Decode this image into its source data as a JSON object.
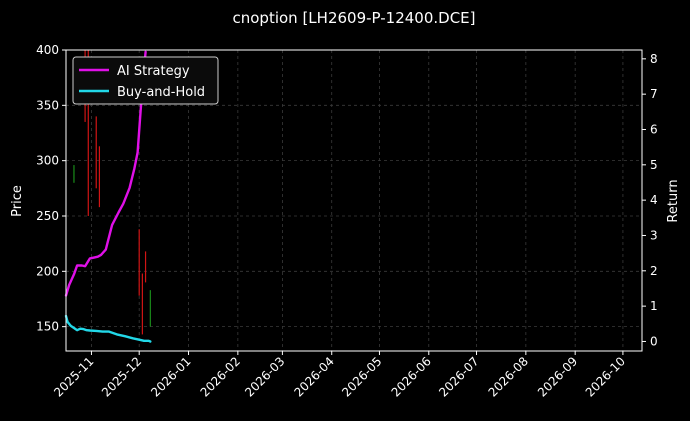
{
  "chart_data": {
    "type": "line",
    "title": "cnoption [LH2609-P-12400.DCE]",
    "ylabel": "Price",
    "y2label": "Return",
    "ylim": [
      128,
      400
    ],
    "y2lim": [
      -0.27,
      8.25
    ],
    "xlim": [
      "2025-10-16",
      "2026-10-13"
    ],
    "y_ticks": [
      "150",
      "200",
      "250",
      "300",
      "350",
      "400"
    ],
    "y2_ticks": [
      "0",
      "1",
      "2",
      "3",
      "4",
      "5",
      "6",
      "7",
      "8"
    ],
    "x_ticks": [
      {
        "date": "2025-11-01",
        "label": "2025-11"
      },
      {
        "date": "2025-12-01",
        "label": "2025-12"
      },
      {
        "date": "2026-01-01",
        "label": "2026-01"
      },
      {
        "date": "2026-02-01",
        "label": "2026-02"
      },
      {
        "date": "2026-03-01",
        "label": "2026-03"
      },
      {
        "date": "2026-04-01",
        "label": "2026-04"
      },
      {
        "date": "2026-05-01",
        "label": "2026-05"
      },
      {
        "date": "2026-06-01",
        "label": "2026-06"
      },
      {
        "date": "2026-07-01",
        "label": "2026-07"
      },
      {
        "date": "2026-08-01",
        "label": "2026-08"
      },
      {
        "date": "2026-09-01",
        "label": "2026-09"
      },
      {
        "date": "2026-10-01",
        "label": "2026-10"
      }
    ],
    "grid": true,
    "legend_position": "top-left",
    "colors": {
      "background": "#000000",
      "grid": "#3a3a3a",
      "axis": "#ffffff",
      "up_candle": "#1a8c1a",
      "down_candle": "#d11515"
    },
    "candles": [
      {
        "date": "2025-10-21",
        "high": 296,
        "low": 280,
        "dir": "up"
      },
      {
        "date": "2025-10-28",
        "high": 400,
        "low": 335,
        "dir": "down"
      },
      {
        "date": "2025-10-30",
        "high": 400,
        "low": 250,
        "dir": "down"
      },
      {
        "date": "2025-11-04",
        "high": 340,
        "low": 275,
        "dir": "down"
      },
      {
        "date": "2025-11-06",
        "high": 313,
        "low": 258,
        "dir": "down"
      },
      {
        "date": "2025-12-01",
        "high": 238,
        "low": 178,
        "dir": "down"
      },
      {
        "date": "2025-12-03",
        "high": 198,
        "low": 143,
        "dir": "down"
      },
      {
        "date": "2025-12-05",
        "high": 218,
        "low": 190,
        "dir": "down"
      },
      {
        "date": "2025-12-08",
        "high": 183,
        "low": 150,
        "dir": "up"
      }
    ],
    "series": [
      {
        "name": "AI Strategy",
        "color": "#e010e8",
        "axis": "right",
        "x": [
          "2025-10-16",
          "2025-10-18",
          "2025-10-21",
          "2025-10-23",
          "2025-10-26",
          "2025-10-28",
          "2025-10-31",
          "2025-11-03",
          "2025-11-05",
          "2025-11-07",
          "2025-11-10",
          "2025-11-14",
          "2025-11-18",
          "2025-11-21",
          "2025-11-25",
          "2025-11-28",
          "2025-11-30",
          "2025-12-02",
          "2025-12-04",
          "2025-12-05"
        ],
        "values": [
          1.3,
          1.6,
          1.9,
          2.15,
          2.15,
          2.13,
          2.35,
          2.38,
          2.4,
          2.45,
          2.6,
          3.3,
          3.65,
          3.9,
          4.35,
          4.9,
          5.35,
          6.6,
          7.7,
          8.2
        ]
      },
      {
        "name": "Buy-and-Hold",
        "color": "#22d8e8",
        "axis": "right",
        "x": [
          "2025-10-16",
          "2025-10-17",
          "2025-10-19",
          "2025-10-21",
          "2025-10-23",
          "2025-10-25",
          "2025-10-27",
          "2025-10-29",
          "2025-10-31",
          "2025-11-04",
          "2025-11-08",
          "2025-11-12",
          "2025-11-17",
          "2025-11-22",
          "2025-11-27",
          "2025-12-01",
          "2025-12-04",
          "2025-12-07",
          "2025-12-08"
        ],
        "values": [
          0.72,
          0.55,
          0.44,
          0.38,
          0.32,
          0.36,
          0.35,
          0.32,
          0.31,
          0.3,
          0.28,
          0.28,
          0.2,
          0.15,
          0.09,
          0.05,
          0.02,
          0.02,
          0.0
        ]
      }
    ]
  }
}
